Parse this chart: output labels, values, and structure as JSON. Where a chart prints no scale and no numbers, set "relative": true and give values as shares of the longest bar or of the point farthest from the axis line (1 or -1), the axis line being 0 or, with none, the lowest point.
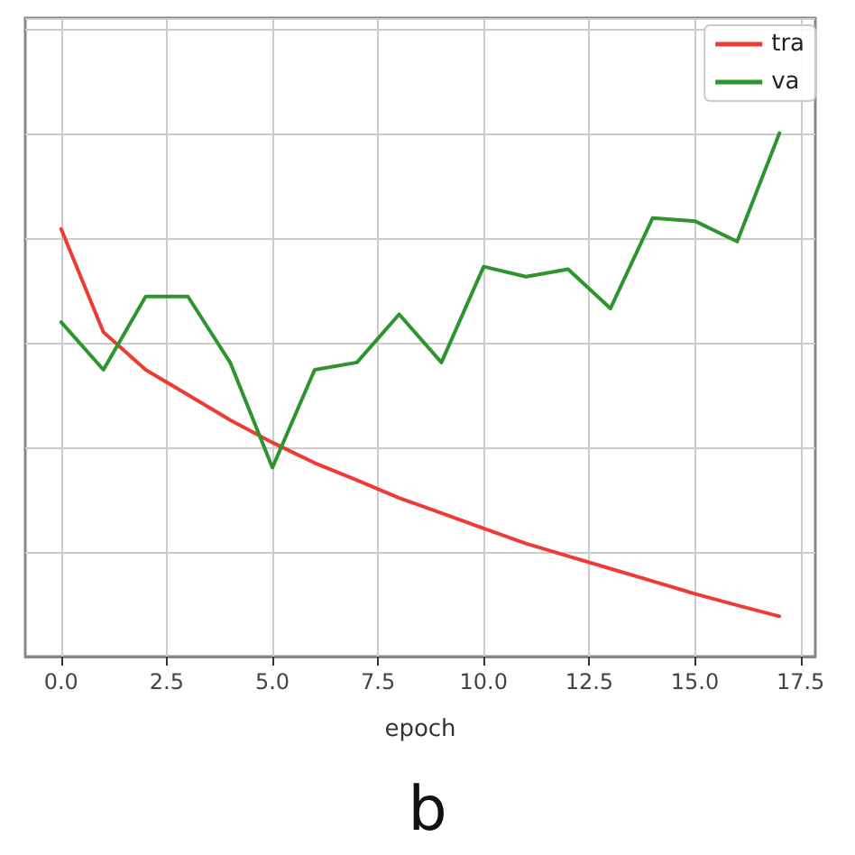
{
  "chart_data": {
    "type": "line",
    "relative": true,
    "xlabel": "epoch",
    "annotations": [
      "b"
    ],
    "x": [
      0,
      1,
      2,
      3,
      4,
      5,
      6,
      7,
      8,
      9,
      10,
      11,
      12,
      13,
      14,
      15,
      16,
      17
    ],
    "xlim": [
      -0.85,
      17.85
    ],
    "xticks": [
      {
        "value": 0,
        "label": "0.0"
      },
      {
        "value": 2.5,
        "label": "2.5"
      },
      {
        "value": 5,
        "label": "5.0"
      },
      {
        "value": 7.5,
        "label": "7.5"
      },
      {
        "value": 10,
        "label": "10.0"
      },
      {
        "value": 12.5,
        "label": "12.5"
      },
      {
        "value": 15,
        "label": "15.0"
      },
      {
        "value": 17.5,
        "label": "17.5"
      }
    ],
    "series": [
      {
        "name": "tra",
        "color": "#ee3b34",
        "values": [
          0.817,
          0.62,
          0.548,
          0.5,
          0.452,
          0.409,
          0.37,
          0.337,
          0.303,
          0.274,
          0.245,
          0.216,
          0.192,
          0.168,
          0.144,
          0.12,
          0.098,
          0.077
        ]
      },
      {
        "name": "va",
        "color": "#2e942e",
        "values": [
          0.639,
          0.548,
          0.688,
          0.688,
          0.562,
          0.361,
          0.548,
          0.562,
          0.654,
          0.562,
          0.745,
          0.726,
          0.74,
          0.665,
          0.838,
          0.832,
          0.793,
          1
        ]
      }
    ],
    "grid": true,
    "legend": "top right",
    "tick_labels": "x",
    "marker": "none",
    "line_style": "solid"
  }
}
